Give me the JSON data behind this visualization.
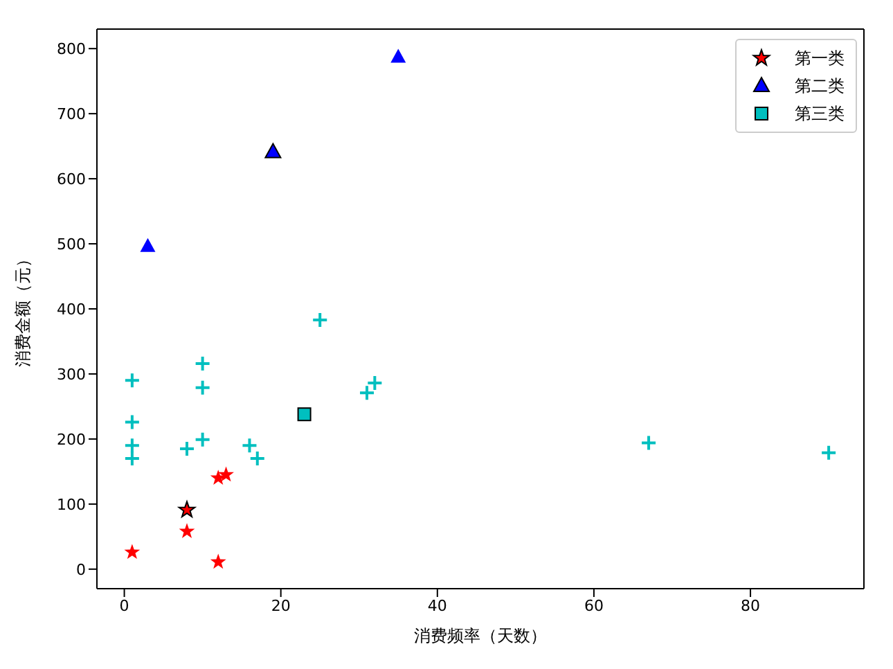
{
  "chart_data": {
    "type": "scatter",
    "xlabel": "消费频率（天数）",
    "ylabel": "消费金额（元）",
    "xlim": [
      -3.5,
      94.5
    ],
    "ylim": [
      -30,
      830
    ],
    "xticks": [
      0,
      20,
      40,
      60,
      80
    ],
    "yticks": [
      0,
      100,
      200,
      300,
      400,
      500,
      600,
      700,
      800
    ],
    "grid": false,
    "legend": "top right",
    "series": [
      {
        "color": "#ff0000",
        "marker": "star",
        "x": [
          1,
          8,
          12,
          12,
          13
        ],
        "values": [
          26,
          58,
          11,
          140,
          145
        ]
      },
      {
        "color": "#0000ff",
        "marker": "triangle",
        "x": [
          3,
          35
        ],
        "values": [
          496,
          787
        ]
      },
      {
        "color": "#00bfbf",
        "marker": "cross",
        "x": [
          25,
          1,
          10,
          10,
          32,
          31,
          1,
          1,
          1,
          8,
          10,
          16,
          17,
          67,
          90
        ],
        "values": [
          383,
          290,
          316,
          279,
          286,
          271,
          226,
          190,
          170,
          185,
          199,
          190,
          170,
          194,
          179
        ]
      },
      {
        "name": "第一类",
        "color": "#ff0000",
        "marker": "star",
        "x": [
          8
        ],
        "values": [
          91
        ]
      },
      {
        "name": "第二类",
        "color": "#0000ff",
        "marker": "triangle",
        "x": [
          19
        ],
        "values": [
          641
        ]
      },
      {
        "name": "第三类",
        "color": "#00bfbf",
        "marker": "square",
        "x": [
          23
        ],
        "values": [
          238
        ]
      }
    ]
  }
}
